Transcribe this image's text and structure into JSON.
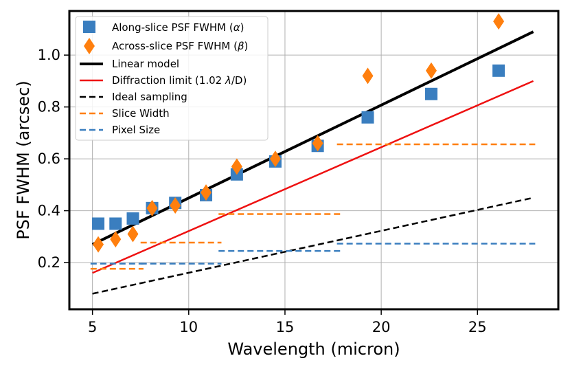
{
  "chart_data": {
    "type": "scatter",
    "title": "",
    "xlabel": "Wavelength (micron)",
    "ylabel": "PSF FWHM (arcsec)",
    "xlim": [
      3.8,
      29.2
    ],
    "ylim": [
      0.02,
      1.17
    ],
    "xticks": [
      5,
      10,
      15,
      20,
      25
    ],
    "yticks": [
      0.2,
      0.4,
      0.6,
      0.8,
      1.0
    ],
    "xtick_labels": [
      "5",
      "10",
      "15",
      "20",
      "25"
    ],
    "ytick_labels": [
      "0.2",
      "0.4",
      "0.6",
      "0.8",
      "1.0"
    ],
    "grid": true,
    "legend_position": "top-left",
    "series": [
      {
        "name": "Along-slice PSF FWHM (α)",
        "kind": "scatter",
        "marker": "square",
        "color": "#3a7ebf",
        "x": [
          5.3,
          6.2,
          7.1,
          8.1,
          9.3,
          10.9,
          12.5,
          14.5,
          16.7,
          19.3,
          22.6,
          26.1
        ],
        "y": [
          0.35,
          0.35,
          0.37,
          0.41,
          0.43,
          0.46,
          0.54,
          0.59,
          0.65,
          0.76,
          0.85,
          0.94
        ]
      },
      {
        "name": "Across-slice PSF FWHM (β)",
        "kind": "scatter",
        "marker": "diamond",
        "color": "#ff7f0e",
        "x": [
          5.3,
          6.2,
          7.1,
          8.1,
          9.3,
          10.9,
          12.5,
          14.5,
          16.7,
          19.3,
          22.6,
          26.1
        ],
        "y": [
          0.27,
          0.29,
          0.31,
          0.41,
          0.42,
          0.47,
          0.57,
          0.6,
          0.66,
          0.92,
          0.94,
          1.13
        ]
      },
      {
        "name": "Linear model",
        "kind": "line",
        "color": "#000000",
        "style": "solid",
        "width": 4,
        "x": [
          5.0,
          27.9
        ],
        "y": [
          0.27,
          1.09
        ]
      },
      {
        "name": "Diffraction limit (1.02 λ/D)",
        "kind": "line",
        "color": "#ee1111",
        "style": "solid",
        "width": 2.5,
        "x": [
          5.0,
          27.9
        ],
        "y": [
          0.16,
          0.9
        ]
      },
      {
        "name": "Ideal sampling",
        "kind": "line",
        "color": "#000000",
        "style": "dashed",
        "width": 2.5,
        "x": [
          5.0,
          27.9
        ],
        "y": [
          0.08,
          0.45
        ]
      },
      {
        "name": "Slice Width",
        "kind": "segments",
        "color": "#ff7f0e",
        "style": "dashed",
        "width": 2.5,
        "segments": [
          {
            "x": [
              4.9,
              7.65
            ],
            "y": 0.176
          },
          {
            "x": [
              7.5,
              11.7
            ],
            "y": 0.277
          },
          {
            "x": [
              11.55,
              17.95
            ],
            "y": 0.387
          },
          {
            "x": [
              17.7,
              28.0
            ],
            "y": 0.656
          }
        ]
      },
      {
        "name": "Pixel Size",
        "kind": "segments",
        "color": "#3a7ebf",
        "style": "dashed",
        "width": 2.5,
        "segments": [
          {
            "x": [
              4.9,
              7.65
            ],
            "y": 0.196
          },
          {
            "x": [
              7.5,
              11.7
            ],
            "y": 0.196
          },
          {
            "x": [
              11.55,
              17.95
            ],
            "y": 0.245
          },
          {
            "x": [
              17.7,
              28.0
            ],
            "y": 0.273
          }
        ]
      }
    ],
    "legend_labels": {
      "along": "Along-slice PSF FWHM (",
      "along_sym": "α",
      "across": "Across-slice PSF FWHM (",
      "across_sym": "β",
      "close_paren": ")",
      "linear": "Linear model",
      "diffraction_pre": "Diffraction limit (1.02 ",
      "diffraction_sym": "λ",
      "diffraction_post": "/D)",
      "ideal": "Ideal sampling",
      "slice": "Slice Width",
      "pixel": "Pixel Size"
    }
  }
}
